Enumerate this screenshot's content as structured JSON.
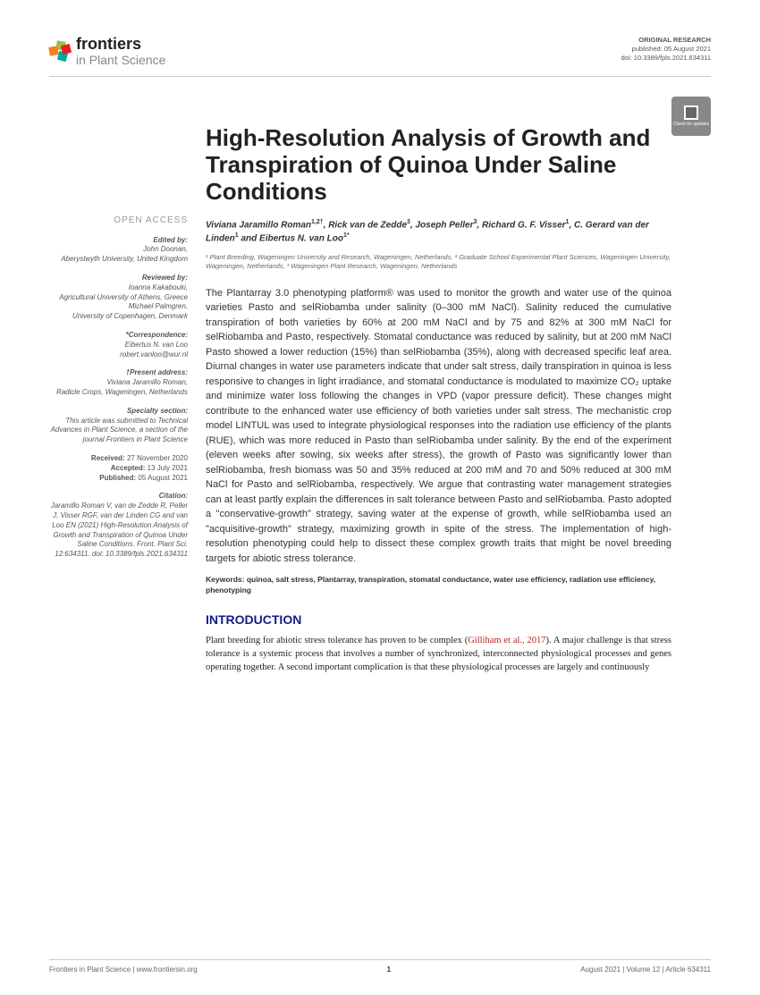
{
  "header": {
    "logo_top": "frontiers",
    "logo_bottom": "in Plant Science",
    "pub_type": "ORIGINAL RESEARCH",
    "pub_date": "published: 05 August 2021",
    "doi": "doi: 10.3389/fpls.2021.634311",
    "updates_label": "Check for updates"
  },
  "article": {
    "title": "High-Resolution Analysis of Growth and Transpiration of Quinoa Under Saline Conditions",
    "authors_html": "Viviana Jaramillo Roman<sup>1,2†</sup>, Rick van de Zedde<sup>3</sup>, Joseph Peller<sup>3</sup>, Richard G. F. Visser<sup>1</sup>, C. Gerard van der Linden<sup>1</sup> and Eibertus N. van Loo<sup>1*</sup>",
    "affiliations": "¹ Plant Breeding, Wageningen University and Research, Wageningen, Netherlands, ² Graduate School Experimental Plant Sciences, Wageningen University, Wageningen, Netherlands, ³ Wageningen Plant Research, Wageningen, Netherlands",
    "abstract": "The Plantarray 3.0 phenotyping platform® was used to monitor the growth and water use of the quinoa varieties Pasto and selRiobamba under salinity (0–300 mM NaCl). Salinity reduced the cumulative transpiration of both varieties by 60% at 200 mM NaCl and by 75 and 82% at 300 mM NaCl for selRiobamba and Pasto, respectively. Stomatal conductance was reduced by salinity, but at 200 mM NaCl Pasto showed a lower reduction (15%) than selRiobamba (35%), along with decreased specific leaf area. Diurnal changes in water use parameters indicate that under salt stress, daily transpiration in quinoa is less responsive to changes in light irradiance, and stomatal conductance is modulated to maximize CO₂ uptake and minimize water loss following the changes in VPD (vapor pressure deficit). These changes might contribute to the enhanced water use efficiency of both varieties under salt stress. The mechanistic crop model LINTUL was used to integrate physiological responses into the radiation use efficiency of the plants (RUE), which was more reduced in Pasto than selRiobamba under salinity. By the end of the experiment (eleven weeks after sowing, six weeks after stress), the growth of Pasto was significantly lower than selRiobamba, fresh biomass was 50 and 35% reduced at 200 mM and 70 and 50% reduced at 300 mM NaCl for Pasto and selRiobamba, respectively. We argue that contrasting water management strategies can at least partly explain the differences in salt tolerance between Pasto and selRiobamba. Pasto adopted a \"conservative-growth\" strategy, saving water at the expense of growth, while selRiobamba used an \"acquisitive-growth\" strategy, maximizing growth in spite of the stress. The implementation of high-resolution phenotyping could help to dissect these complex growth traits that might be novel breeding targets for abiotic stress tolerance.",
    "keywords": "Keywords: quinoa, salt stress, Plantarray, transpiration, stomatal conductance, water use efficiency, radiation use efficiency, phenotyping",
    "intro_heading": "INTRODUCTION",
    "intro_text_pre": "Plant breeding for abiotic stress tolerance has proven to be complex (",
    "intro_cite": "Gilliham et al., 2017",
    "intro_text_post": "). A major challenge is that stress tolerance is a systemic process that involves a number of synchronized, interconnected physiological processes and genes operating together. A second important complication is that these physiological processes are largely and continuously"
  },
  "sidebar": {
    "open_access": "OPEN ACCESS",
    "edited_label": "Edited by:",
    "edited_by": "John Doonan,",
    "edited_affil": "Aberystwyth University, United Kingdom",
    "reviewed_label": "Reviewed by:",
    "rev1": "Ioanna Kakabouki,",
    "rev1_affil": "Agricultural University of Athens, Greece",
    "rev2": "Michael Palmgren,",
    "rev2_affil": "University of Copenhagen, Denmark",
    "corr_label": "*Correspondence:",
    "corr_name": "Eibertus N. van Loo",
    "corr_email": "robert.vanloo@wur.nl",
    "present_label": "†Present address:",
    "present_name": "Viviana Jaramillo Roman,",
    "present_affil": "Radicle Crops, Wageningen, Netherlands",
    "specialty_label": "Specialty section:",
    "specialty_text": "This article was submitted to Technical Advances in Plant Science, a section of the journal Frontiers in Plant Science",
    "received": "Received: 27 November 2020",
    "accepted": "Accepted: 13 July 2021",
    "published": "Published: 05 August 2021",
    "citation_label": "Citation:",
    "citation_text": "Jaramillo Roman V, van de Zedde R, Peller J, Visser RGF, van der Linden CG and van Loo EN (2021) High-Resolution Analysis of Growth and Transpiration of Quinoa Under Saline Conditions. Front. Plant Sci. 12:634311. doi: 10.3389/fpls.2021.634311"
  },
  "footer": {
    "left": "Frontiers in Plant Science | www.frontiersin.org",
    "page": "1",
    "right": "August 2021 | Volume 12 | Article 634311"
  },
  "colors": {
    "heading": "#131f85",
    "logo_colors": [
      "#8fc540",
      "#f58220",
      "#00a79d",
      "#ed1c24"
    ]
  }
}
